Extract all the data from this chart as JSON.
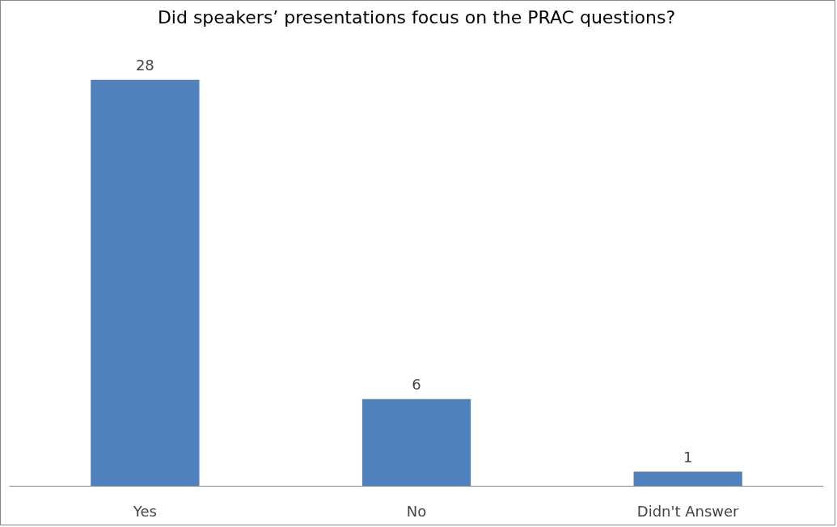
{
  "chart_data": {
    "type": "bar",
    "title": "Did speakers’ presentations focus on the PRAC questions?",
    "categories": [
      "Yes",
      "No",
      "Didn't Answer"
    ],
    "values": [
      28,
      6,
      1
    ],
    "color": "#4f81bd",
    "data_labels": true,
    "grid": false
  }
}
